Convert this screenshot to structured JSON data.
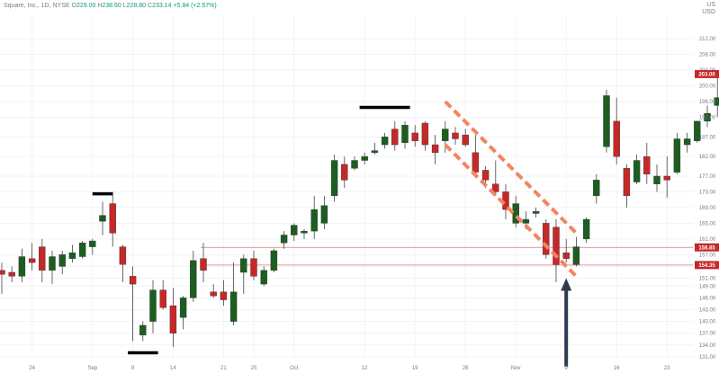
{
  "header": {
    "symbol_line": "Square, Inc., 1D, NYSE",
    "ohlc": [
      {
        "label": "O",
        "value": "229.00"
      },
      {
        "label": "H",
        "value": "238.60"
      },
      {
        "label": "L",
        "value": "228.80"
      },
      {
        "label": "C",
        "value": "233.14"
      }
    ],
    "change": "+5.84 (+2.57%)",
    "currency": "US\nUSD"
  },
  "colors": {
    "up": "#1b5e20",
    "down": "#c62828",
    "level_line": "#e57373",
    "channel": "#f4845f",
    "arrow": "#2f3a4f",
    "tag_bg": "#c62828",
    "grid": "#f0f3fa"
  },
  "chart_data": {
    "type": "candlestick",
    "ylim": [
      128,
      215
    ],
    "y_ticks": [
      "212.00",
      "208.00",
      "204.00",
      "200.00",
      "196.00",
      "192.00",
      "187.00",
      "182.00",
      "177.00",
      "173.00",
      "169.00",
      "165.00",
      "161.00",
      "157.00",
      "154.00",
      "151.00",
      "149.00",
      "146.00",
      "143.00",
      "140.00",
      "137.00",
      "134.00",
      "131.00",
      "128.00"
    ],
    "x_ticks": [
      {
        "label": "24",
        "index": 3
      },
      {
        "label": "Sep",
        "index": 9
      },
      {
        "label": "8",
        "index": 13
      },
      {
        "label": "14",
        "index": 17
      },
      {
        "label": "21",
        "index": 22
      },
      {
        "label": "25",
        "index": 25
      },
      {
        "label": "Oct",
        "index": 29
      },
      {
        "label": "12",
        "index": 36
      },
      {
        "label": "19",
        "index": 41
      },
      {
        "label": "26",
        "index": 46
      },
      {
        "label": "Nov",
        "index": 51
      },
      {
        "label": "9",
        "index": 56
      },
      {
        "label": "16",
        "index": 61
      },
      {
        "label": "23",
        "index": 66
      }
    ],
    "candles": [
      {
        "o": 153.0,
        "h": 155.0,
        "l": 147.0,
        "c": 152.0
      },
      {
        "o": 152.5,
        "h": 154.0,
        "l": 150.0,
        "c": 151.5
      },
      {
        "o": 151.5,
        "h": 158.5,
        "l": 150.0,
        "c": 156.5
      },
      {
        "o": 156.0,
        "h": 160.0,
        "l": 153.0,
        "c": 155.0
      },
      {
        "o": 159.0,
        "h": 161.0,
        "l": 150.0,
        "c": 153.0
      },
      {
        "o": 153.0,
        "h": 158.0,
        "l": 149.5,
        "c": 156.5
      },
      {
        "o": 154.0,
        "h": 158.0,
        "l": 152.0,
        "c": 157.0
      },
      {
        "o": 156.0,
        "h": 159.5,
        "l": 155.0,
        "c": 157.5
      },
      {
        "o": 156.5,
        "h": 160.5,
        "l": 156.0,
        "c": 160.0
      },
      {
        "o": 159.0,
        "h": 161.0,
        "l": 157.0,
        "c": 160.5
      },
      {
        "o": 165.5,
        "h": 170.5,
        "l": 162.0,
        "c": 167.0
      },
      {
        "o": 170.0,
        "h": 173.0,
        "l": 159.0,
        "c": 162.5
      },
      {
        "o": 159.0,
        "h": 159.5,
        "l": 150.0,
        "c": 154.5
      },
      {
        "o": 151.5,
        "h": 154.0,
        "l": 135.0,
        "c": 149.5
      },
      {
        "o": 136.5,
        "h": 140.0,
        "l": 135.0,
        "c": 139.0
      },
      {
        "o": 140.0,
        "h": 150.5,
        "l": 137.0,
        "c": 148.0
      },
      {
        "o": 148.0,
        "h": 150.5,
        "l": 143.0,
        "c": 143.5
      },
      {
        "o": 144.0,
        "h": 148.5,
        "l": 133.5,
        "c": 137.0
      },
      {
        "o": 141.0,
        "h": 146.5,
        "l": 138.0,
        "c": 146.0
      },
      {
        "o": 146.0,
        "h": 158.0,
        "l": 145.0,
        "c": 155.5
      },
      {
        "o": 156.0,
        "h": 160.0,
        "l": 150.0,
        "c": 153.0
      },
      {
        "o": 147.5,
        "h": 149.5,
        "l": 146.0,
        "c": 146.5
      },
      {
        "o": 147.5,
        "h": 150.5,
        "l": 144.0,
        "c": 145.5
      },
      {
        "o": 140.0,
        "h": 155.0,
        "l": 139.0,
        "c": 147.5
      },
      {
        "o": 152.5,
        "h": 157.0,
        "l": 147.0,
        "c": 156.0
      },
      {
        "o": 156.0,
        "h": 158.0,
        "l": 150.5,
        "c": 151.5
      },
      {
        "o": 149.5,
        "h": 154.0,
        "l": 149.0,
        "c": 153.0
      },
      {
        "o": 153.0,
        "h": 158.5,
        "l": 152.5,
        "c": 158.0
      },
      {
        "o": 160.0,
        "h": 163.0,
        "l": 158.5,
        "c": 162.0
      },
      {
        "o": 162.0,
        "h": 165.0,
        "l": 160.5,
        "c": 164.5
      },
      {
        "o": 162.5,
        "h": 163.5,
        "l": 161.0,
        "c": 163.0
      },
      {
        "o": 163.0,
        "h": 172.0,
        "l": 161.0,
        "c": 168.5
      },
      {
        "o": 165.0,
        "h": 172.0,
        "l": 163.5,
        "c": 169.5
      },
      {
        "o": 172.0,
        "h": 182.5,
        "l": 170.5,
        "c": 181.0
      },
      {
        "o": 180.0,
        "h": 182.0,
        "l": 174.0,
        "c": 176.0
      },
      {
        "o": 179.0,
        "h": 182.0,
        "l": 178.5,
        "c": 181.0
      },
      {
        "o": 181.0,
        "h": 183.0,
        "l": 180.0,
        "c": 182.0
      },
      {
        "o": 183.0,
        "h": 185.5,
        "l": 182.5,
        "c": 183.5
      },
      {
        "o": 185.0,
        "h": 188.0,
        "l": 184.0,
        "c": 187.0
      },
      {
        "o": 189.0,
        "h": 191.0,
        "l": 183.5,
        "c": 185.0
      },
      {
        "o": 185.5,
        "h": 191.0,
        "l": 184.0,
        "c": 190.0
      },
      {
        "o": 188.0,
        "h": 190.0,
        "l": 184.5,
        "c": 186.0
      },
      {
        "o": 190.5,
        "h": 191.0,
        "l": 183.5,
        "c": 185.0
      },
      {
        "o": 185.0,
        "h": 187.5,
        "l": 180.0,
        "c": 183.0
      },
      {
        "o": 186.0,
        "h": 191.0,
        "l": 183.0,
        "c": 189.0
      },
      {
        "o": 188.0,
        "h": 189.5,
        "l": 185.0,
        "c": 186.5
      },
      {
        "o": 187.5,
        "h": 189.0,
        "l": 184.5,
        "c": 185.0
      },
      {
        "o": 183.0,
        "h": 187.5,
        "l": 176.5,
        "c": 178.0
      },
      {
        "o": 178.5,
        "h": 179.5,
        "l": 174.0,
        "c": 176.0
      },
      {
        "o": 175.0,
        "h": 181.0,
        "l": 172.0,
        "c": 173.0
      },
      {
        "o": 173.0,
        "h": 175.0,
        "l": 166.0,
        "c": 168.5
      },
      {
        "o": 165.0,
        "h": 172.0,
        "l": 164.0,
        "c": 170.0
      },
      {
        "o": 165.0,
        "h": 168.0,
        "l": 163.5,
        "c": 166.0
      },
      {
        "o": 167.5,
        "h": 169.0,
        "l": 166.5,
        "c": 168.0
      },
      {
        "o": 165.0,
        "h": 166.0,
        "l": 156.0,
        "c": 157.0
      },
      {
        "o": 164.0,
        "h": 166.0,
        "l": 150.0,
        "c": 154.5
      },
      {
        "o": 157.5,
        "h": 161.0,
        "l": 155.0,
        "c": 156.0
      },
      {
        "o": 154.5,
        "h": 161.5,
        "l": 154.0,
        "c": 159.0
      },
      {
        "o": 161.0,
        "h": 166.5,
        "l": 160.0,
        "c": 166.0
      },
      {
        "o": 172.0,
        "h": 177.5,
        "l": 170.0,
        "c": 176.0
      },
      {
        "o": 184.5,
        "h": 199.0,
        "l": 183.0,
        "c": 197.5
      },
      {
        "o": 191.0,
        "h": 197.0,
        "l": 180.0,
        "c": 182.0
      },
      {
        "o": 179.0,
        "h": 180.0,
        "l": 169.0,
        "c": 172.0
      },
      {
        "o": 175.5,
        "h": 182.5,
        "l": 175.0,
        "c": 181.0
      },
      {
        "o": 182.0,
        "h": 185.5,
        "l": 175.0,
        "c": 177.5
      },
      {
        "o": 175.0,
        "h": 180.0,
        "l": 173.0,
        "c": 177.0
      },
      {
        "o": 177.0,
        "h": 182.0,
        "l": 171.5,
        "c": 176.0
      },
      {
        "o": 178.0,
        "h": 188.0,
        "l": 177.5,
        "c": 186.5
      },
      {
        "o": 185.0,
        "h": 188.0,
        "l": 183.0,
        "c": 186.5
      },
      {
        "o": 186.0,
        "h": 191.0,
        "l": 185.5,
        "c": 191.0
      },
      {
        "o": 191.0,
        "h": 195.0,
        "l": 189.5,
        "c": 193.0
      },
      {
        "o": 195.0,
        "h": 202.0,
        "l": 192.0,
        "c": 197.0
      },
      {
        "o": 202.0,
        "h": 212.0,
        "l": 201.0,
        "c": 210.0
      },
      {
        "o": 211.0,
        "h": 213.0,
        "l": 202.0,
        "c": 203.0
      }
    ],
    "horizontal_levels": [
      {
        "value": 158.85,
        "label": "158.85",
        "start_index": 20
      },
      {
        "value": 154.35,
        "label": "154.35",
        "start_index": 20
      }
    ],
    "channel": {
      "upper": {
        "x": [
          44,
          57
        ],
        "y": [
          196.0,
          162.5
        ]
      },
      "lower": {
        "x": [
          44,
          57
        ],
        "y": [
          185.0,
          151.5
        ]
      }
    },
    "markers": [
      {
        "index": 10,
        "value": 172.5,
        "span": 2
      },
      {
        "index": 14,
        "value": 132.0,
        "span": 3
      },
      {
        "index": 38,
        "value": 194.5,
        "span": 5
      }
    ],
    "arrow": {
      "index": 56,
      "from_value": 128.5,
      "to_value": 151.0
    }
  }
}
